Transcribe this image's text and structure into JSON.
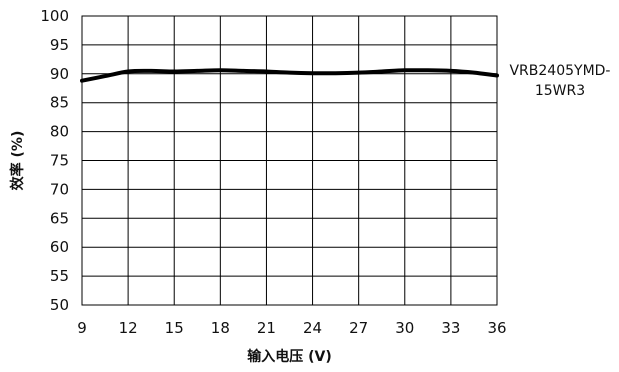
{
  "chart_data": {
    "type": "line",
    "xlabel": "输入电压 (V)",
    "ylabel": "效率 (%)",
    "xlim": [
      9,
      36
    ],
    "ylim": [
      50,
      100
    ],
    "x_ticks": [
      9,
      12,
      15,
      18,
      21,
      24,
      27,
      30,
      33,
      36
    ],
    "y_ticks": [
      50,
      55,
      60,
      65,
      70,
      75,
      80,
      85,
      90,
      95,
      100
    ],
    "grid": "horizontal and vertical",
    "legend_placement": "right",
    "series": [
      {
        "name": "VRB2405YMD-15WR3",
        "color": "#000000",
        "x": [
          9,
          10.5,
          12,
          13.5,
          15,
          16.5,
          18,
          19.5,
          21,
          22.5,
          24,
          25.5,
          27,
          28.5,
          30,
          31.5,
          33,
          34.5,
          36
        ],
        "y": [
          88.8,
          89.6,
          90.4,
          90.5,
          90.4,
          90.5,
          90.6,
          90.5,
          90.4,
          90.2,
          90.1,
          90.1,
          90.2,
          90.4,
          90.6,
          90.6,
          90.5,
          90.2,
          89.7
        ]
      }
    ]
  }
}
